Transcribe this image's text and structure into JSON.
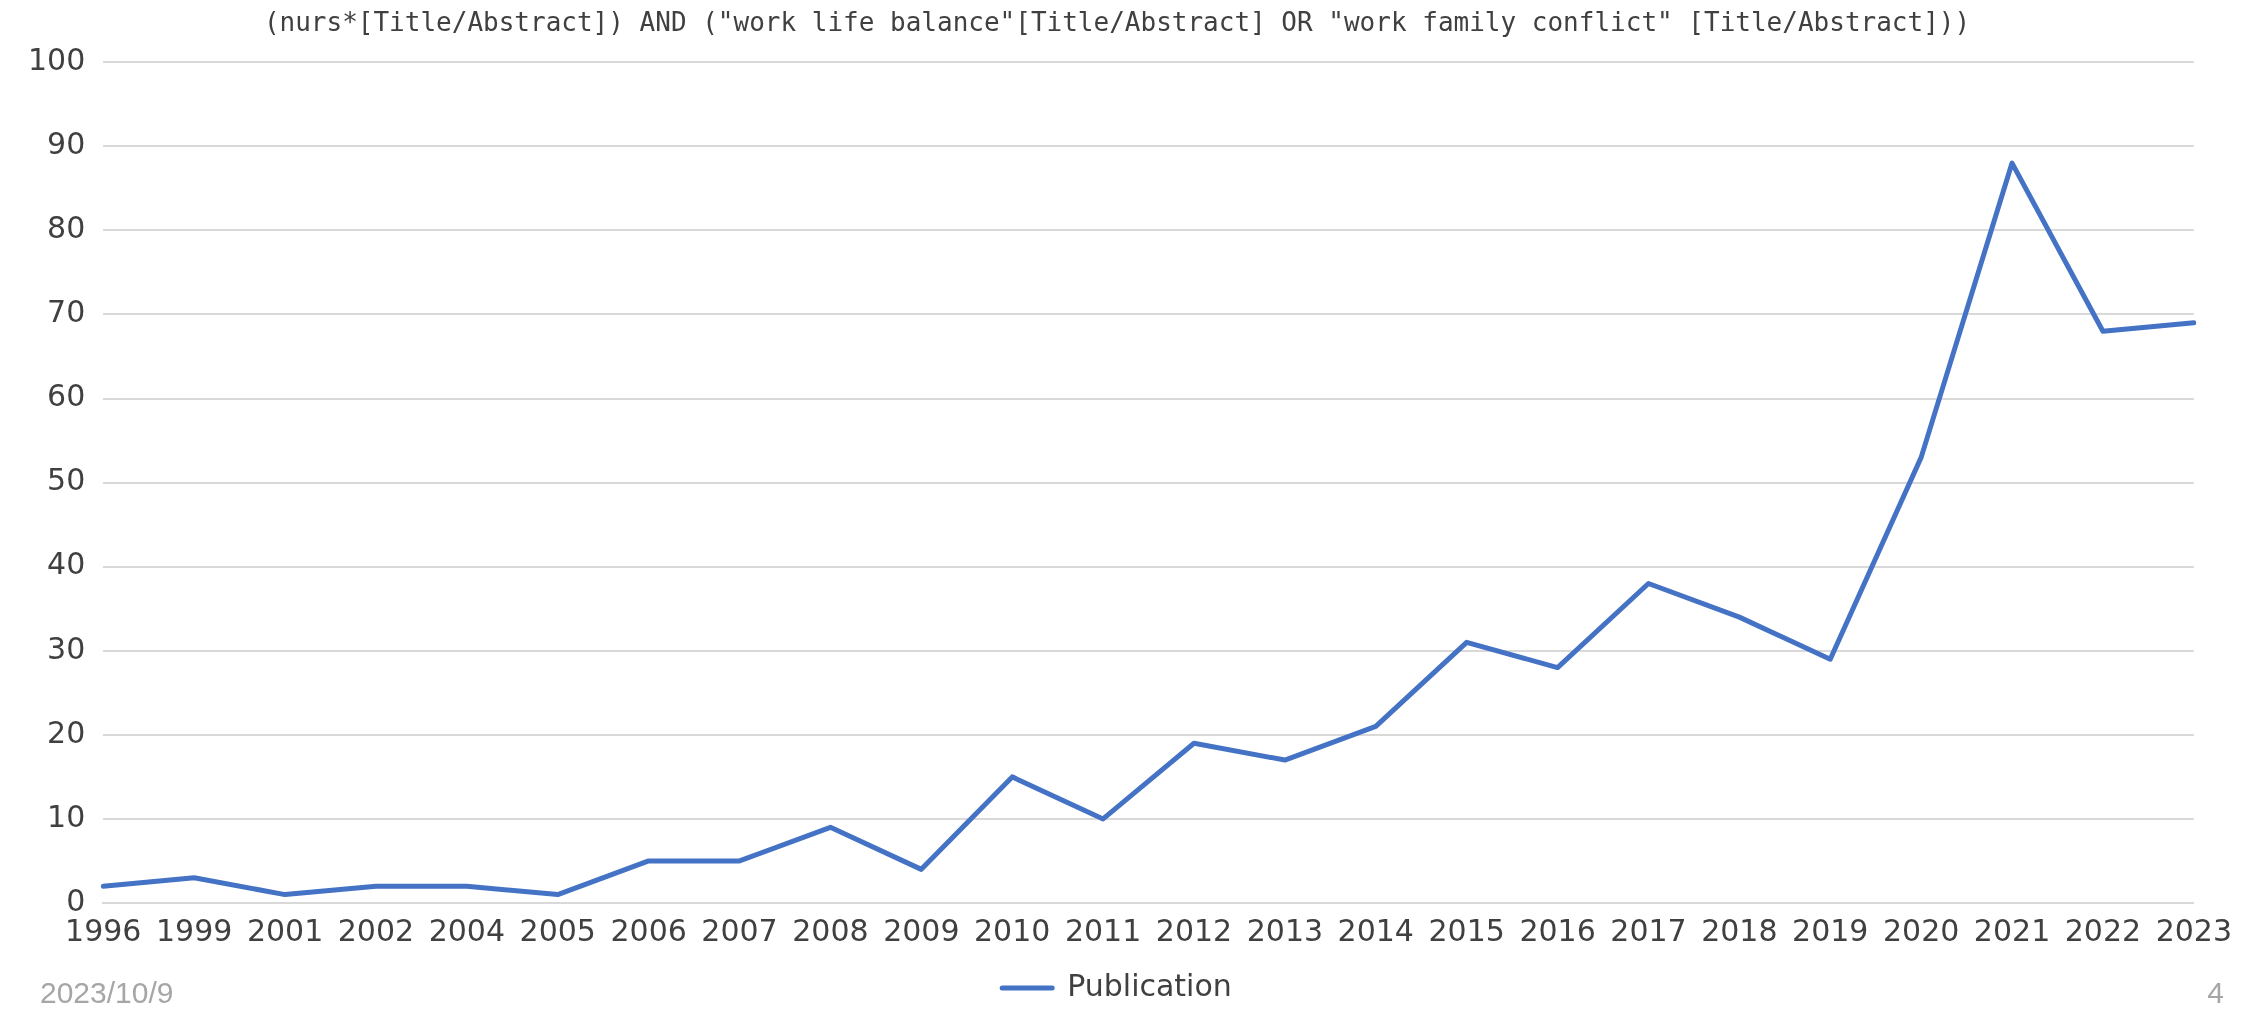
{
  "chart_data": {
    "type": "line",
    "title": "(nurs*[Title/Abstract]) AND (\"work life balance\"[Title/Abstract] OR \"work family conflict\" [Title/Abstract]))",
    "categories": [
      "1996",
      "1999",
      "2001",
      "2002",
      "2004",
      "2005",
      "2006",
      "2007",
      "2008",
      "2009",
      "2010",
      "2011",
      "2012",
      "2013",
      "2014",
      "2015",
      "2016",
      "2017",
      "2018",
      "2019",
      "2020",
      "2021",
      "2022",
      "2023"
    ],
    "series": [
      {
        "name": "Publication",
        "color": "#4472c4",
        "values": [
          2,
          3,
          1,
          2,
          2,
          1,
          5,
          5,
          9,
          4,
          15,
          10,
          19,
          17,
          21,
          31,
          28,
          38,
          34,
          29,
          53,
          88,
          68,
          69
        ]
      }
    ],
    "ylim": [
      0,
      100
    ],
    "yticks": [
      0,
      10,
      20,
      30,
      40,
      50,
      60,
      70,
      80,
      90,
      100
    ],
    "grid": "y",
    "legend": "bottom",
    "marker": "none",
    "line_style": "solid",
    "annotations": [
      "2023/10/9",
      "4"
    ]
  }
}
